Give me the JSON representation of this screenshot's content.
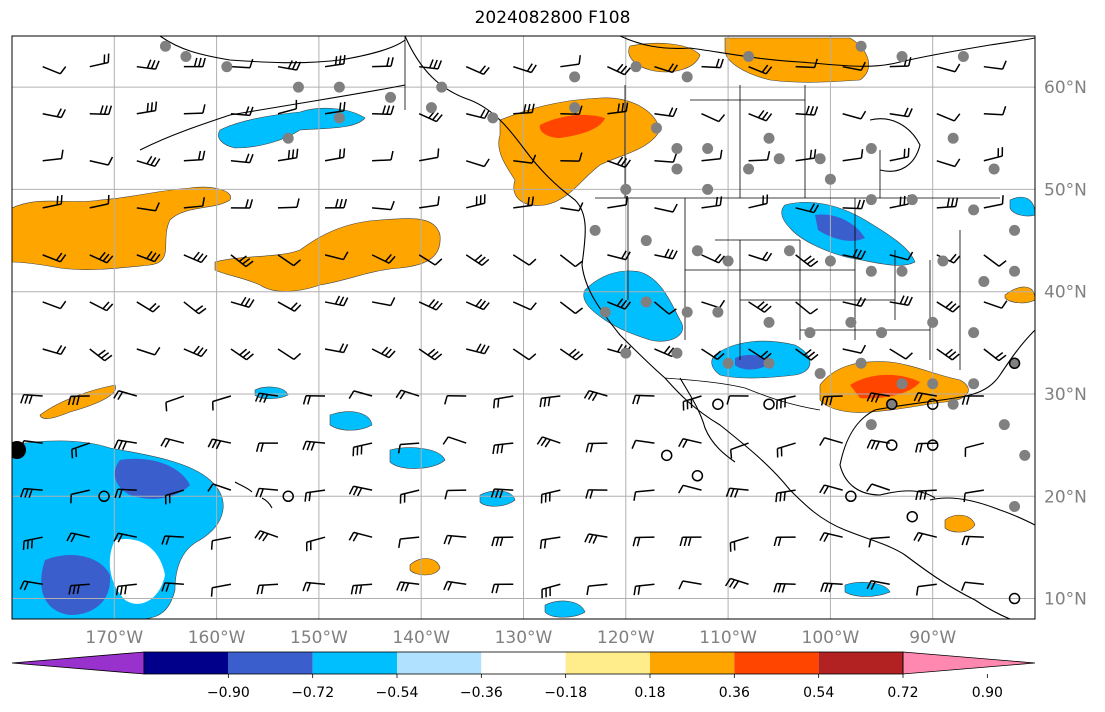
{
  "title": "2024082800 F108",
  "map": {
    "lon_range": [
      -180,
      -80
    ],
    "lat_range": [
      8,
      65
    ],
    "lon_ticks": [
      {
        "value": -170,
        "label": "170°W"
      },
      {
        "value": -160,
        "label": "160°W"
      },
      {
        "value": -150,
        "label": "150°W"
      },
      {
        "value": -140,
        "label": "140°W"
      },
      {
        "value": -130,
        "label": "130°W"
      },
      {
        "value": -120,
        "label": "120°W"
      },
      {
        "value": -110,
        "label": "110°W"
      },
      {
        "value": -100,
        "label": "100°W"
      },
      {
        "value": -90,
        "label": "90°W"
      }
    ],
    "lat_ticks": [
      {
        "value": 60,
        "label": "60°N"
      },
      {
        "value": 50,
        "label": "50°N"
      },
      {
        "value": 40,
        "label": "40°N"
      },
      {
        "value": 30,
        "label": "30°N"
      },
      {
        "value": 20,
        "label": "20°N"
      },
      {
        "value": 10,
        "label": "10°N"
      }
    ],
    "grid": true,
    "fields": [
      "filled-contours",
      "wind-barbs",
      "station-markers",
      "coastlines",
      "borders"
    ]
  },
  "colorbar": {
    "ticks": [
      "−0.90",
      "−0.72",
      "−0.54",
      "−0.36",
      "−0.18",
      "0.18",
      "0.36",
      "0.54",
      "0.72",
      "0.90"
    ],
    "colors": [
      "#9932cc",
      "#00008b",
      "#3a5fcd",
      "#00bfff",
      "#b0e2ff",
      "#ffffff",
      "#ffec8b",
      "#ffa500",
      "#ff4500",
      "#b22222",
      "#ff88b0"
    ],
    "extend": "both",
    "placement": "bottom"
  }
}
